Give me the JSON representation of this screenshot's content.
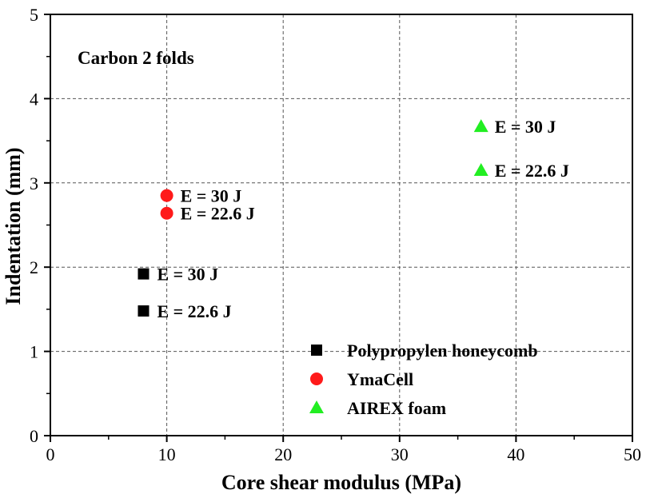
{
  "chart_data": {
    "type": "scatter",
    "annotation": "Carbon 2 folds",
    "xlabel": "Core shear modulus (MPa)",
    "ylabel": "Indentation (mm)",
    "xlim": [
      0,
      50
    ],
    "ylim": [
      0,
      5
    ],
    "xticks": [
      "0",
      "10",
      "20",
      "30",
      "40",
      "50"
    ],
    "yticks": [
      "0",
      "1",
      "2",
      "3",
      "4",
      "5"
    ],
    "grid": "dashed, at major ticks",
    "legend_position": "bottom-right",
    "series": [
      {
        "name": "Polypropylen honeycomb",
        "marker": "square",
        "color": "#000000",
        "points": [
          {
            "x": 8,
            "y": 1.92,
            "label": "E = 30 J"
          },
          {
            "x": 8,
            "y": 1.48,
            "label": "E = 22.6 J"
          }
        ]
      },
      {
        "name": "YmaCell",
        "marker": "circle",
        "color": "#ff1a1a",
        "points": [
          {
            "x": 10,
            "y": 2.85,
            "label": "E = 30 J"
          },
          {
            "x": 10,
            "y": 2.64,
            "label": "E = 22.6 J"
          }
        ]
      },
      {
        "name": "AIREX foam",
        "marker": "triangle",
        "color": "#22ee22",
        "points": [
          {
            "x": 37,
            "y": 3.67,
            "label": "E = 30 J"
          },
          {
            "x": 37,
            "y": 3.15,
            "label": "E = 22.6 J"
          }
        ]
      }
    ]
  }
}
